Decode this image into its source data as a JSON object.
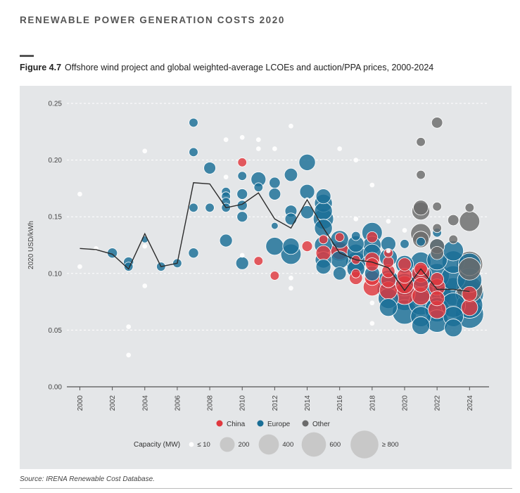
{
  "header": {
    "report_title": "RENEWABLE POWER GENERATION COSTS 2020",
    "figure_number": "Figure 4.7",
    "figure_title": "Offshore wind project and global weighted-average LCOEs and auction/PPA prices, 2000-2024",
    "source": "Source: IRENA Renewable Cost Database."
  },
  "legend": {
    "regions": [
      {
        "name": "China",
        "color": "#e0383e"
      },
      {
        "name": "Europe",
        "color": "#1a6e96"
      },
      {
        "name": "Other",
        "color": "#6b6b6b"
      }
    ],
    "capacity_title": "Capacity (MW)",
    "capacity_items": [
      {
        "label": "≤ 10",
        "mw": 10
      },
      {
        "label": "200",
        "mw": 200
      },
      {
        "label": "400",
        "mw": 400
      },
      {
        "label": "600",
        "mw": 600
      },
      {
        "label": "≥ 800",
        "mw": 800
      }
    ]
  },
  "chart_data": {
    "type": "scatter",
    "ylabel": "2020 USD/kWh",
    "xlabel": "",
    "xlim": [
      1999.2,
      2025.2
    ],
    "ylim": [
      0,
      0.25
    ],
    "x_ticks": [
      "2000",
      "2002",
      "2004",
      "2006",
      "2008",
      "2010",
      "2012",
      "2014",
      "2016",
      "2018",
      "2020",
      "2022",
      "2024"
    ],
    "y_ticks": [
      "0.00",
      "0.05",
      "0.10",
      "0.15",
      "0.20",
      "0.25"
    ],
    "grid": true,
    "legend_placement": "bottom",
    "series": [
      {
        "name": "China",
        "points": [
          [
            2010,
            0.198,
            60
          ],
          [
            2010,
            0.116,
            10
          ],
          [
            2011,
            0.111,
            60
          ],
          [
            2012,
            0.098,
            60
          ],
          [
            2013,
            0.096,
            10
          ],
          [
            2014,
            0.124,
            90
          ],
          [
            2015,
            0.118,
            200
          ],
          [
            2015,
            0.13,
            60
          ],
          [
            2016,
            0.12,
            300
          ],
          [
            2016,
            0.132,
            60
          ],
          [
            2017,
            0.096,
            150
          ],
          [
            2017,
            0.1,
            60
          ],
          [
            2017,
            0.112,
            60
          ],
          [
            2018,
            0.088,
            300
          ],
          [
            2018,
            0.096,
            200
          ],
          [
            2018,
            0.108,
            150
          ],
          [
            2018,
            0.132,
            100
          ],
          [
            2018,
            0.112,
            200
          ],
          [
            2019,
            0.085,
            300
          ],
          [
            2019,
            0.094,
            200
          ],
          [
            2019,
            0.102,
            150
          ],
          [
            2019,
            0.11,
            100
          ],
          [
            2019,
            0.118,
            60
          ],
          [
            2020,
            0.082,
            450
          ],
          [
            2020,
            0.09,
            300
          ],
          [
            2020,
            0.098,
            200
          ],
          [
            2020,
            0.108,
            150
          ],
          [
            2021,
            0.08,
            300
          ],
          [
            2021,
            0.09,
            200
          ],
          [
            2021,
            0.1,
            300
          ],
          [
            2021,
            0.104,
            150
          ],
          [
            2022,
            0.068,
            300
          ],
          [
            2022,
            0.078,
            200
          ],
          [
            2022,
            0.088,
            250
          ],
          [
            2022,
            0.095,
            150
          ],
          [
            2024,
            0.07,
            250
          ],
          [
            2024,
            0.082,
            200
          ]
        ]
      },
      {
        "name": "Europe",
        "points": [
          [
            2001,
            0.122,
            10
          ],
          [
            2002,
            0.118,
            80
          ],
          [
            2003,
            0.11,
            80
          ],
          [
            2003,
            0.106,
            60
          ],
          [
            2003,
            0.053,
            10
          ],
          [
            2003,
            0.028,
            10
          ],
          [
            2004,
            0.13,
            30
          ],
          [
            2004,
            0.124,
            10
          ],
          [
            2005,
            0.106,
            60
          ],
          [
            2006,
            0.109,
            60
          ],
          [
            2007,
            0.233,
            60
          ],
          [
            2007,
            0.207,
            60
          ],
          [
            2007,
            0.158,
            60
          ],
          [
            2007,
            0.118,
            80
          ],
          [
            2008,
            0.193,
            120
          ],
          [
            2008,
            0.158,
            60
          ],
          [
            2009,
            0.218,
            10
          ],
          [
            2009,
            0.185,
            10
          ],
          [
            2009,
            0.172,
            60
          ],
          [
            2009,
            0.168,
            60
          ],
          [
            2009,
            0.163,
            60
          ],
          [
            2009,
            0.158,
            60
          ],
          [
            2009,
            0.129,
            140
          ],
          [
            2010,
            0.186,
            60
          ],
          [
            2010,
            0.17,
            90
          ],
          [
            2010,
            0.16,
            80
          ],
          [
            2010,
            0.15,
            90
          ],
          [
            2010,
            0.109,
            140
          ],
          [
            2011,
            0.21,
            10
          ],
          [
            2011,
            0.183,
            200
          ],
          [
            2011,
            0.176,
            60
          ],
          [
            2012,
            0.18,
            100
          ],
          [
            2012,
            0.17,
            120
          ],
          [
            2012,
            0.124,
            300
          ],
          [
            2012,
            0.142,
            30
          ],
          [
            2013,
            0.187,
            150
          ],
          [
            2013,
            0.155,
            120
          ],
          [
            2013,
            0.148,
            120
          ],
          [
            2013,
            0.124,
            250
          ],
          [
            2013,
            0.117,
            400
          ],
          [
            2013,
            0.087,
            10
          ],
          [
            2014,
            0.198,
            250
          ],
          [
            2014,
            0.172,
            200
          ],
          [
            2014,
            0.154,
            150
          ],
          [
            2015,
            0.168,
            200
          ],
          [
            2015,
            0.162,
            300
          ],
          [
            2015,
            0.155,
            300
          ],
          [
            2015,
            0.148,
            400
          ],
          [
            2015,
            0.14,
            300
          ],
          [
            2015,
            0.125,
            300
          ],
          [
            2015,
            0.112,
            250
          ],
          [
            2015,
            0.106,
            200
          ],
          [
            2016,
            0.13,
            300
          ],
          [
            2016,
            0.12,
            400
          ],
          [
            2016,
            0.112,
            300
          ],
          [
            2016,
            0.1,
            150
          ],
          [
            2017,
            0.126,
            250
          ],
          [
            2017,
            0.118,
            300
          ],
          [
            2017,
            0.11,
            400
          ],
          [
            2017,
            0.104,
            300
          ],
          [
            2017,
            0.133,
            60
          ],
          [
            2018,
            0.136,
            400
          ],
          [
            2018,
            0.125,
            300
          ],
          [
            2018,
            0.118,
            300
          ],
          [
            2018,
            0.1,
            200
          ],
          [
            2018,
            0.074,
            10
          ],
          [
            2018,
            0.056,
            10
          ],
          [
            2019,
            0.126,
            200
          ],
          [
            2019,
            0.114,
            300
          ],
          [
            2019,
            0.094,
            400
          ],
          [
            2019,
            0.086,
            500
          ],
          [
            2019,
            0.078,
            400
          ],
          [
            2019,
            0.07,
            300
          ],
          [
            2020,
            0.126,
            60
          ],
          [
            2020,
            0.108,
            300
          ],
          [
            2020,
            0.09,
            500
          ],
          [
            2020,
            0.078,
            600
          ],
          [
            2020,
            0.066,
            600
          ],
          [
            2021,
            0.128,
            60
          ],
          [
            2021,
            0.11,
            400
          ],
          [
            2021,
            0.098,
            500
          ],
          [
            2021,
            0.086,
            600
          ],
          [
            2021,
            0.074,
            600
          ],
          [
            2021,
            0.062,
            400
          ],
          [
            2021,
            0.054,
            300
          ],
          [
            2022,
            0.136,
            60
          ],
          [
            2022,
            0.124,
            200
          ],
          [
            2022,
            0.112,
            400
          ],
          [
            2022,
            0.098,
            600
          ],
          [
            2022,
            0.082,
            800
          ],
          [
            2022,
            0.068,
            600
          ],
          [
            2022,
            0.058,
            500
          ],
          [
            2023,
            0.12,
            400
          ],
          [
            2023,
            0.11,
            500
          ],
          [
            2023,
            0.096,
            600
          ],
          [
            2023,
            0.084,
            800
          ],
          [
            2023,
            0.072,
            600
          ],
          [
            2023,
            0.062,
            400
          ],
          [
            2023,
            0.052,
            300
          ],
          [
            2024,
            0.108,
            500
          ],
          [
            2024,
            0.094,
            600
          ],
          [
            2024,
            0.082,
            800
          ],
          [
            2024,
            0.072,
            700
          ],
          [
            2024,
            0.064,
            800
          ]
        ]
      },
      {
        "name": "Other",
        "points": [
          [
            2000,
            0.17,
            10
          ],
          [
            2000,
            0.106,
            10
          ],
          [
            2004,
            0.208,
            10
          ],
          [
            2004,
            0.089,
            10
          ],
          [
            2010,
            0.22,
            10
          ],
          [
            2011,
            0.218,
            10
          ],
          [
            2012,
            0.21,
            10
          ],
          [
            2013,
            0.23,
            10
          ],
          [
            2014,
            0.165,
            10
          ],
          [
            2016,
            0.21,
            10
          ],
          [
            2017,
            0.2,
            10
          ],
          [
            2017,
            0.148,
            10
          ],
          [
            2018,
            0.178,
            10
          ],
          [
            2019,
            0.146,
            10
          ],
          [
            2019,
            0.12,
            10
          ],
          [
            2020,
            0.138,
            10
          ],
          [
            2021,
            0.216,
            60
          ],
          [
            2021,
            0.187,
            60
          ],
          [
            2021,
            0.158,
            200
          ],
          [
            2021,
            0.155,
            300
          ],
          [
            2021,
            0.135,
            400
          ],
          [
            2021,
            0.13,
            250
          ],
          [
            2022,
            0.233,
            100
          ],
          [
            2022,
            0.159,
            60
          ],
          [
            2022,
            0.14,
            60
          ],
          [
            2022,
            0.124,
            200
          ],
          [
            2022,
            0.118,
            150
          ],
          [
            2023,
            0.147,
            100
          ],
          [
            2023,
            0.13,
            60
          ],
          [
            2024,
            0.158,
            60
          ],
          [
            2024,
            0.146,
            400
          ],
          [
            2024,
            0.108,
            700
          ],
          [
            2024,
            0.104,
            500
          ],
          [
            2024,
            0.086,
            700
          ]
        ]
      },
      {
        "name": "",
        "type": "line",
        "points": [
          [
            2000,
            0.122
          ],
          [
            2001,
            0.121
          ],
          [
            2002,
            0.117
          ],
          [
            2003,
            0.104
          ],
          [
            2004,
            0.135
          ],
          [
            2005,
            0.106
          ],
          [
            2006,
            0.109
          ],
          [
            2007,
            0.18
          ],
          [
            2008,
            0.179
          ],
          [
            2009,
            0.158
          ],
          [
            2010,
            0.161
          ],
          [
            2011,
            0.171
          ],
          [
            2012,
            0.148
          ],
          [
            2013,
            0.14
          ],
          [
            2014,
            0.165
          ],
          [
            2015,
            0.14
          ],
          [
            2016,
            0.118
          ],
          [
            2017,
            0.112
          ],
          [
            2018,
            0.11
          ],
          [
            2019,
            0.105
          ],
          [
            2020,
            0.085
          ],
          [
            2021,
            0.104
          ],
          [
            2022,
            0.086
          ],
          [
            2023,
            0.086
          ],
          [
            2024,
            0.084
          ]
        ]
      }
    ]
  }
}
